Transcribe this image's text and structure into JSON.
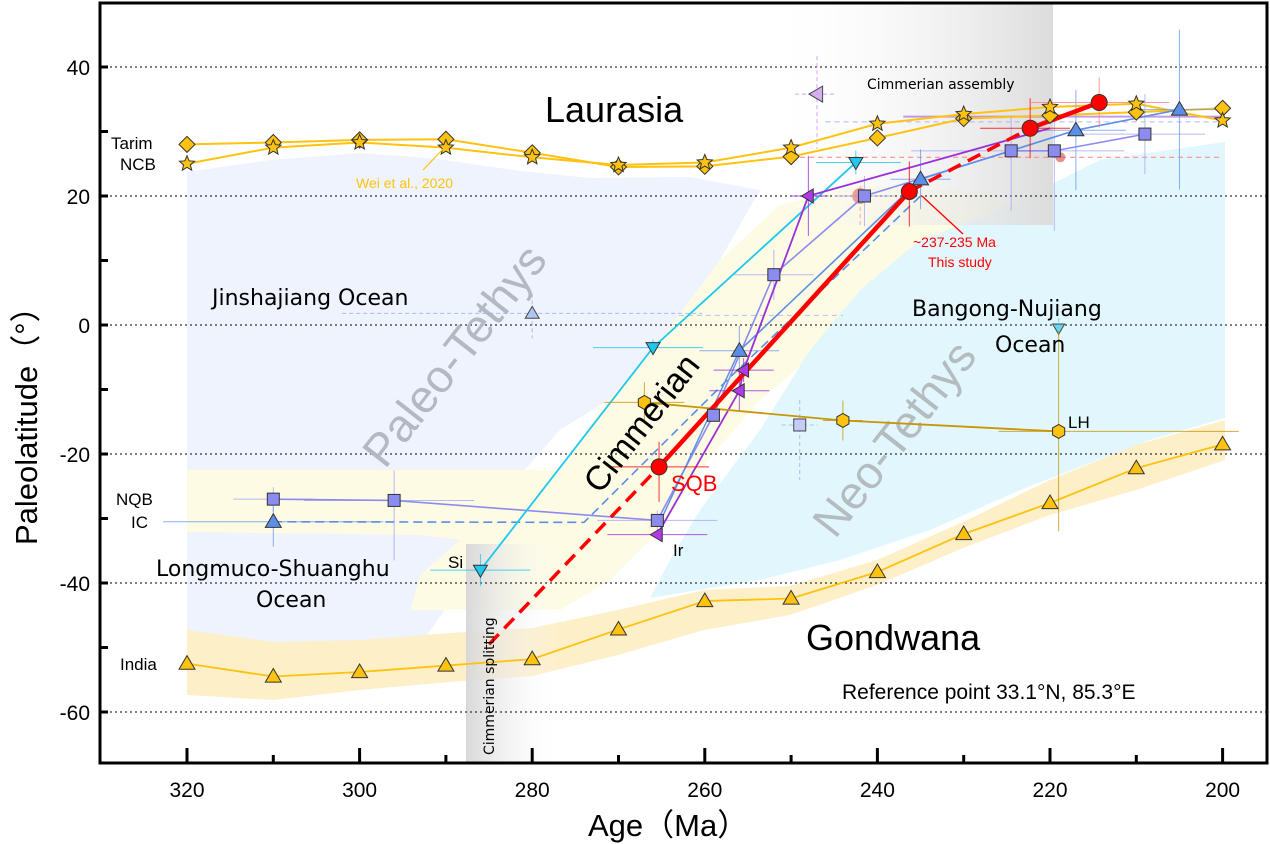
{
  "chart_data": {
    "type": "scatter",
    "title": "",
    "xlabel": "Age（Ma）",
    "ylabel": "Paleolatitude（°）",
    "xlim": [
      330,
      195
    ],
    "ylim": [
      -68,
      50
    ],
    "x_reversed": true,
    "x_ticks": [
      320,
      300,
      280,
      260,
      240,
      220,
      200
    ],
    "x_tick_labels": [
      "320",
      "300",
      "280",
      "260",
      "240",
      "220",
      "200"
    ],
    "y_ticks": [
      40,
      20,
      0,
      -20,
      -40,
      -60
    ],
    "y_tick_labels": [
      "40",
      "20",
      "0",
      "-20",
      "-40",
      "-60"
    ],
    "grid": "horizontal dotted at major y ticks",
    "series": [
      {
        "name": "Tarim",
        "marker": "diamond",
        "color": "#ffc20e",
        "x": [
          320,
          310,
          300,
          290,
          280,
          270,
          260,
          250,
          240,
          230,
          220,
          210,
          200
        ],
        "y": [
          28,
          28.3,
          28.7,
          28.8,
          26.7,
          24.5,
          24.6,
          26.1,
          29,
          32,
          32.5,
          33,
          33.6
        ]
      },
      {
        "name": "NCB",
        "marker": "star",
        "color": "#ffc20e",
        "x": [
          320,
          310,
          300,
          290,
          280,
          270,
          260,
          250,
          240,
          230,
          220,
          210,
          200
        ],
        "y": [
          25,
          27.5,
          28.3,
          27.5,
          26,
          24.8,
          25.2,
          27.5,
          31.2,
          32.7,
          33.8,
          34.3,
          31.7
        ]
      },
      {
        "name": "India",
        "marker": "triangle-up",
        "color": "#ffc20e",
        "x": [
          320,
          310,
          300,
          290,
          280,
          270,
          260,
          250,
          240,
          230,
          220,
          210,
          200
        ],
        "y": [
          -52.5,
          -54.5,
          -53.8,
          -52.8,
          -51.8,
          -47.2,
          -42.8,
          -42.4,
          -38.3,
          -32.4,
          -27.6,
          -22.2,
          -18.5
        ]
      },
      {
        "name": "NQB",
        "marker": "square",
        "color": "#8c8cf0",
        "x": [
          310,
          296,
          265.5,
          259,
          252,
          241.5,
          224.5,
          219.5,
          209
        ],
        "y": [
          -27,
          -27.2,
          -30.3,
          -14,
          7.8,
          20,
          27,
          27,
          29.6
        ]
      },
      {
        "name": "IC",
        "marker": "triangle-up",
        "color": "#5b8ee6",
        "x": [
          310,
          256,
          235,
          217,
          205
        ],
        "y": [
          -30.5,
          -4,
          22.6,
          30.2,
          33.4
        ]
      },
      {
        "name": "Si",
        "marker": "triangle-down",
        "color": "#1ec8f0",
        "x": [
          286,
          266,
          242.5
        ],
        "y": [
          -38,
          -3.5,
          25.2
        ]
      },
      {
        "name": "Ir",
        "marker": "triangle-left",
        "color": "#9b30d8",
        "x": [
          265.5,
          256,
          255.5,
          248
        ],
        "y": [
          -32.5,
          -10.2,
          -7,
          20
        ]
      },
      {
        "name": "LH",
        "marker": "hexagon",
        "color": "#e0a800",
        "x": [
          267,
          244,
          219
        ],
        "y": [
          -12,
          -14.8,
          -16.5
        ]
      },
      {
        "name": "SQB (This study)",
        "marker": "circle",
        "color": "#ff0000",
        "x": [
          265.3,
          236.3,
          222.3,
          214.3
        ],
        "y": [
          -22,
          20.7,
          30.5,
          34.5
        ]
      }
    ],
    "regions": [
      "Laurasia",
      "Gondwana",
      "Paleo-Tethys",
      "Neo-Tethys",
      "Cimmerian",
      "Jinshajiang Ocean",
      "Bangong-Nujiang Ocean",
      "Longmuco-Shuanghu Ocean"
    ],
    "annotations": {
      "laurasia": "Laurasia",
      "gondwana": "Gondwana",
      "paleo_tethys": "Paleo-Tethys",
      "neo_tethys": "Neo-Tethys",
      "cimmerian": "Cimmerian",
      "jinshajiang": "Jinshajiang Ocean",
      "bangong_1": "Bangong-Nujiang",
      "bangong_2": "Ocean",
      "longmuco_1": "Longmuco-Shuanghu",
      "longmuco_2": "Ocean",
      "cimmerian_assembly": "Cimmerian assembly",
      "cimmerian_splitting": "Cimmerian splitting",
      "wei": "Wei et al., 2020",
      "age_note_1": "~237-235 Ma",
      "age_note_2": "This study",
      "sqb": "SQB",
      "tarim": "Tarim",
      "ncb": "NCB",
      "nqb": "NQB",
      "ic": "IC",
      "si": "Si",
      "ir": "Ir",
      "lh": "LH",
      "india": "India",
      "reference": "Reference point 33.1°N, 85.3°E"
    },
    "colors": {
      "laurasia_ocean": "#eef3fd",
      "cimmerian_band": "#fdfbe4",
      "neo_tethys": "#e2f7fd",
      "india_band": "#fdefc8",
      "yellow": "#ffc20e",
      "red": "#ff0000",
      "purple": "#9b30d8",
      "cyan": "#1ec8f0",
      "blue": "#5b8ee6",
      "lavender": "#8c8cf0",
      "gold": "#c8960a"
    }
  }
}
